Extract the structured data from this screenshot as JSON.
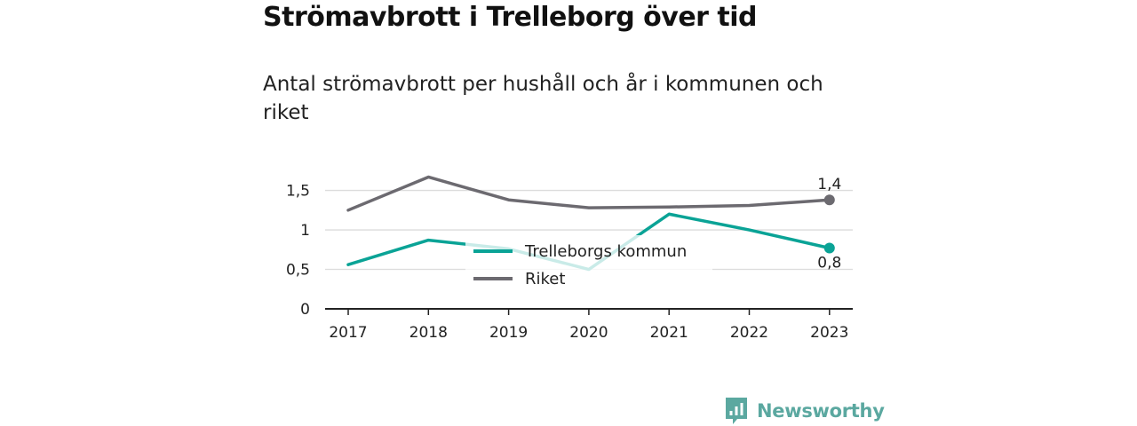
{
  "title": "Strömavbrott i Trelleborg över tid",
  "subtitle": "Antal strömavbrott per hushåll och år i kommunen och riket",
  "brand": {
    "name": "Newsworthy",
    "icon": "newsworthy-logo-icon",
    "color": "#5ba8a0"
  },
  "chart_data": {
    "type": "line",
    "x": [
      "2017",
      "2018",
      "2019",
      "2020",
      "2021",
      "2022",
      "2023"
    ],
    "y_ticks": [
      {
        "value": 0,
        "label": "0"
      },
      {
        "value": 0.5,
        "label": "0,5"
      },
      {
        "value": 1,
        "label": "1"
      },
      {
        "value": 1.5,
        "label": "1,5"
      }
    ],
    "ylim": [
      0,
      1.72
    ],
    "grid": true,
    "legend": "center",
    "series": [
      {
        "name": "Trelleborgs kommun",
        "color": "#0aa396",
        "values": [
          0.56,
          0.87,
          0.76,
          0.5,
          1.2,
          1.0,
          0.77
        ],
        "end_label": "0,8"
      },
      {
        "name": "Riket",
        "color": "#6c6a70",
        "values": [
          1.25,
          1.67,
          1.38,
          1.28,
          1.29,
          1.31,
          1.38
        ],
        "end_label": "1,4"
      }
    ],
    "title": "Strömavbrott i Trelleborg över tid",
    "subtitle": "Antal strömavbrott per hushåll och år i kommunen och riket"
  }
}
